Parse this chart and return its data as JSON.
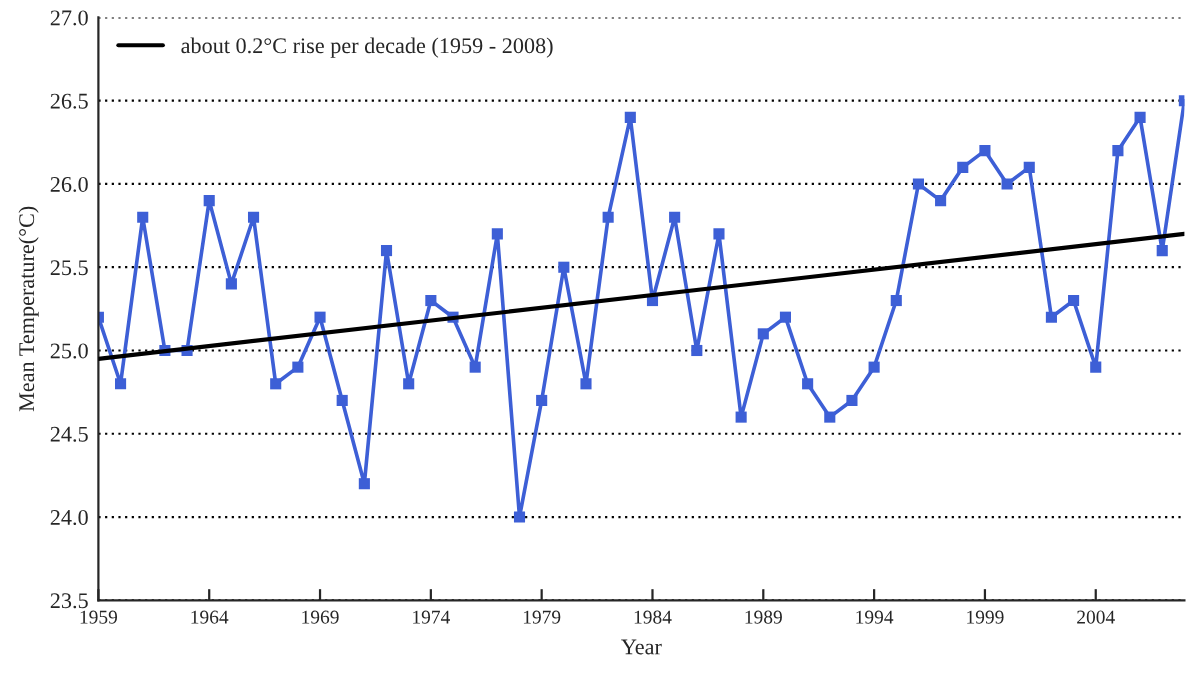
{
  "chart_data": {
    "type": "line",
    "xlabel": "Year",
    "ylabel": "Mean Temperature(°C)",
    "x": [
      1959,
      1960,
      1961,
      1962,
      1963,
      1964,
      1965,
      1966,
      1967,
      1968,
      1969,
      1970,
      1971,
      1972,
      1973,
      1974,
      1975,
      1976,
      1977,
      1978,
      1979,
      1980,
      1981,
      1982,
      1983,
      1984,
      1985,
      1986,
      1987,
      1988,
      1989,
      1990,
      1991,
      1992,
      1993,
      1994,
      1995,
      1996,
      1997,
      1998,
      1999,
      2000,
      2001,
      2002,
      2003,
      2004,
      2005,
      2006,
      2007,
      2008
    ],
    "series": [
      {
        "color": "#3d5fd6",
        "marker": "square",
        "values": [
          25.2,
          24.8,
          25.8,
          25.0,
          25.0,
          25.9,
          25.4,
          25.8,
          24.8,
          24.9,
          25.2,
          24.7,
          24.2,
          25.6,
          24.8,
          25.3,
          25.2,
          24.9,
          25.7,
          24.0,
          24.7,
          25.5,
          24.8,
          25.8,
          26.4,
          25.3,
          25.8,
          25.0,
          25.7,
          24.6,
          25.1,
          25.2,
          24.8,
          24.6,
          24.7,
          24.9,
          25.3,
          26.0,
          25.9,
          26.1,
          26.2,
          26.0,
          26.1,
          25.2,
          25.3,
          24.9,
          26.2,
          26.4,
          25.6,
          26.5
        ]
      },
      {
        "type": "line",
        "name": "about 0.2°C rise per decade (1959 - 2008)",
        "color": "#000000",
        "marker": "none",
        "x": [
          1959,
          2008
        ],
        "values": [
          24.95,
          25.7
        ]
      }
    ],
    "xlim": [
      1959,
      2008
    ],
    "xticks": [
      1959,
      1964,
      1969,
      1974,
      1979,
      1984,
      1989,
      1994,
      1999,
      2004
    ],
    "ylim": [
      23.5,
      27.0
    ],
    "yticks": [
      {
        "value": 23.5,
        "label": "23.5"
      },
      {
        "value": 24,
        "label": "24.0"
      },
      {
        "value": 24.5,
        "label": "24.5"
      },
      {
        "value": 25,
        "label": "25.0"
      },
      {
        "value": 25.5,
        "label": "25.5"
      },
      {
        "value": 26,
        "label": "26.0"
      },
      {
        "value": 26.5,
        "label": "26.5"
      },
      {
        "value": 27,
        "label": "27.0"
      }
    ],
    "grid": "y",
    "legend": "top left"
  }
}
